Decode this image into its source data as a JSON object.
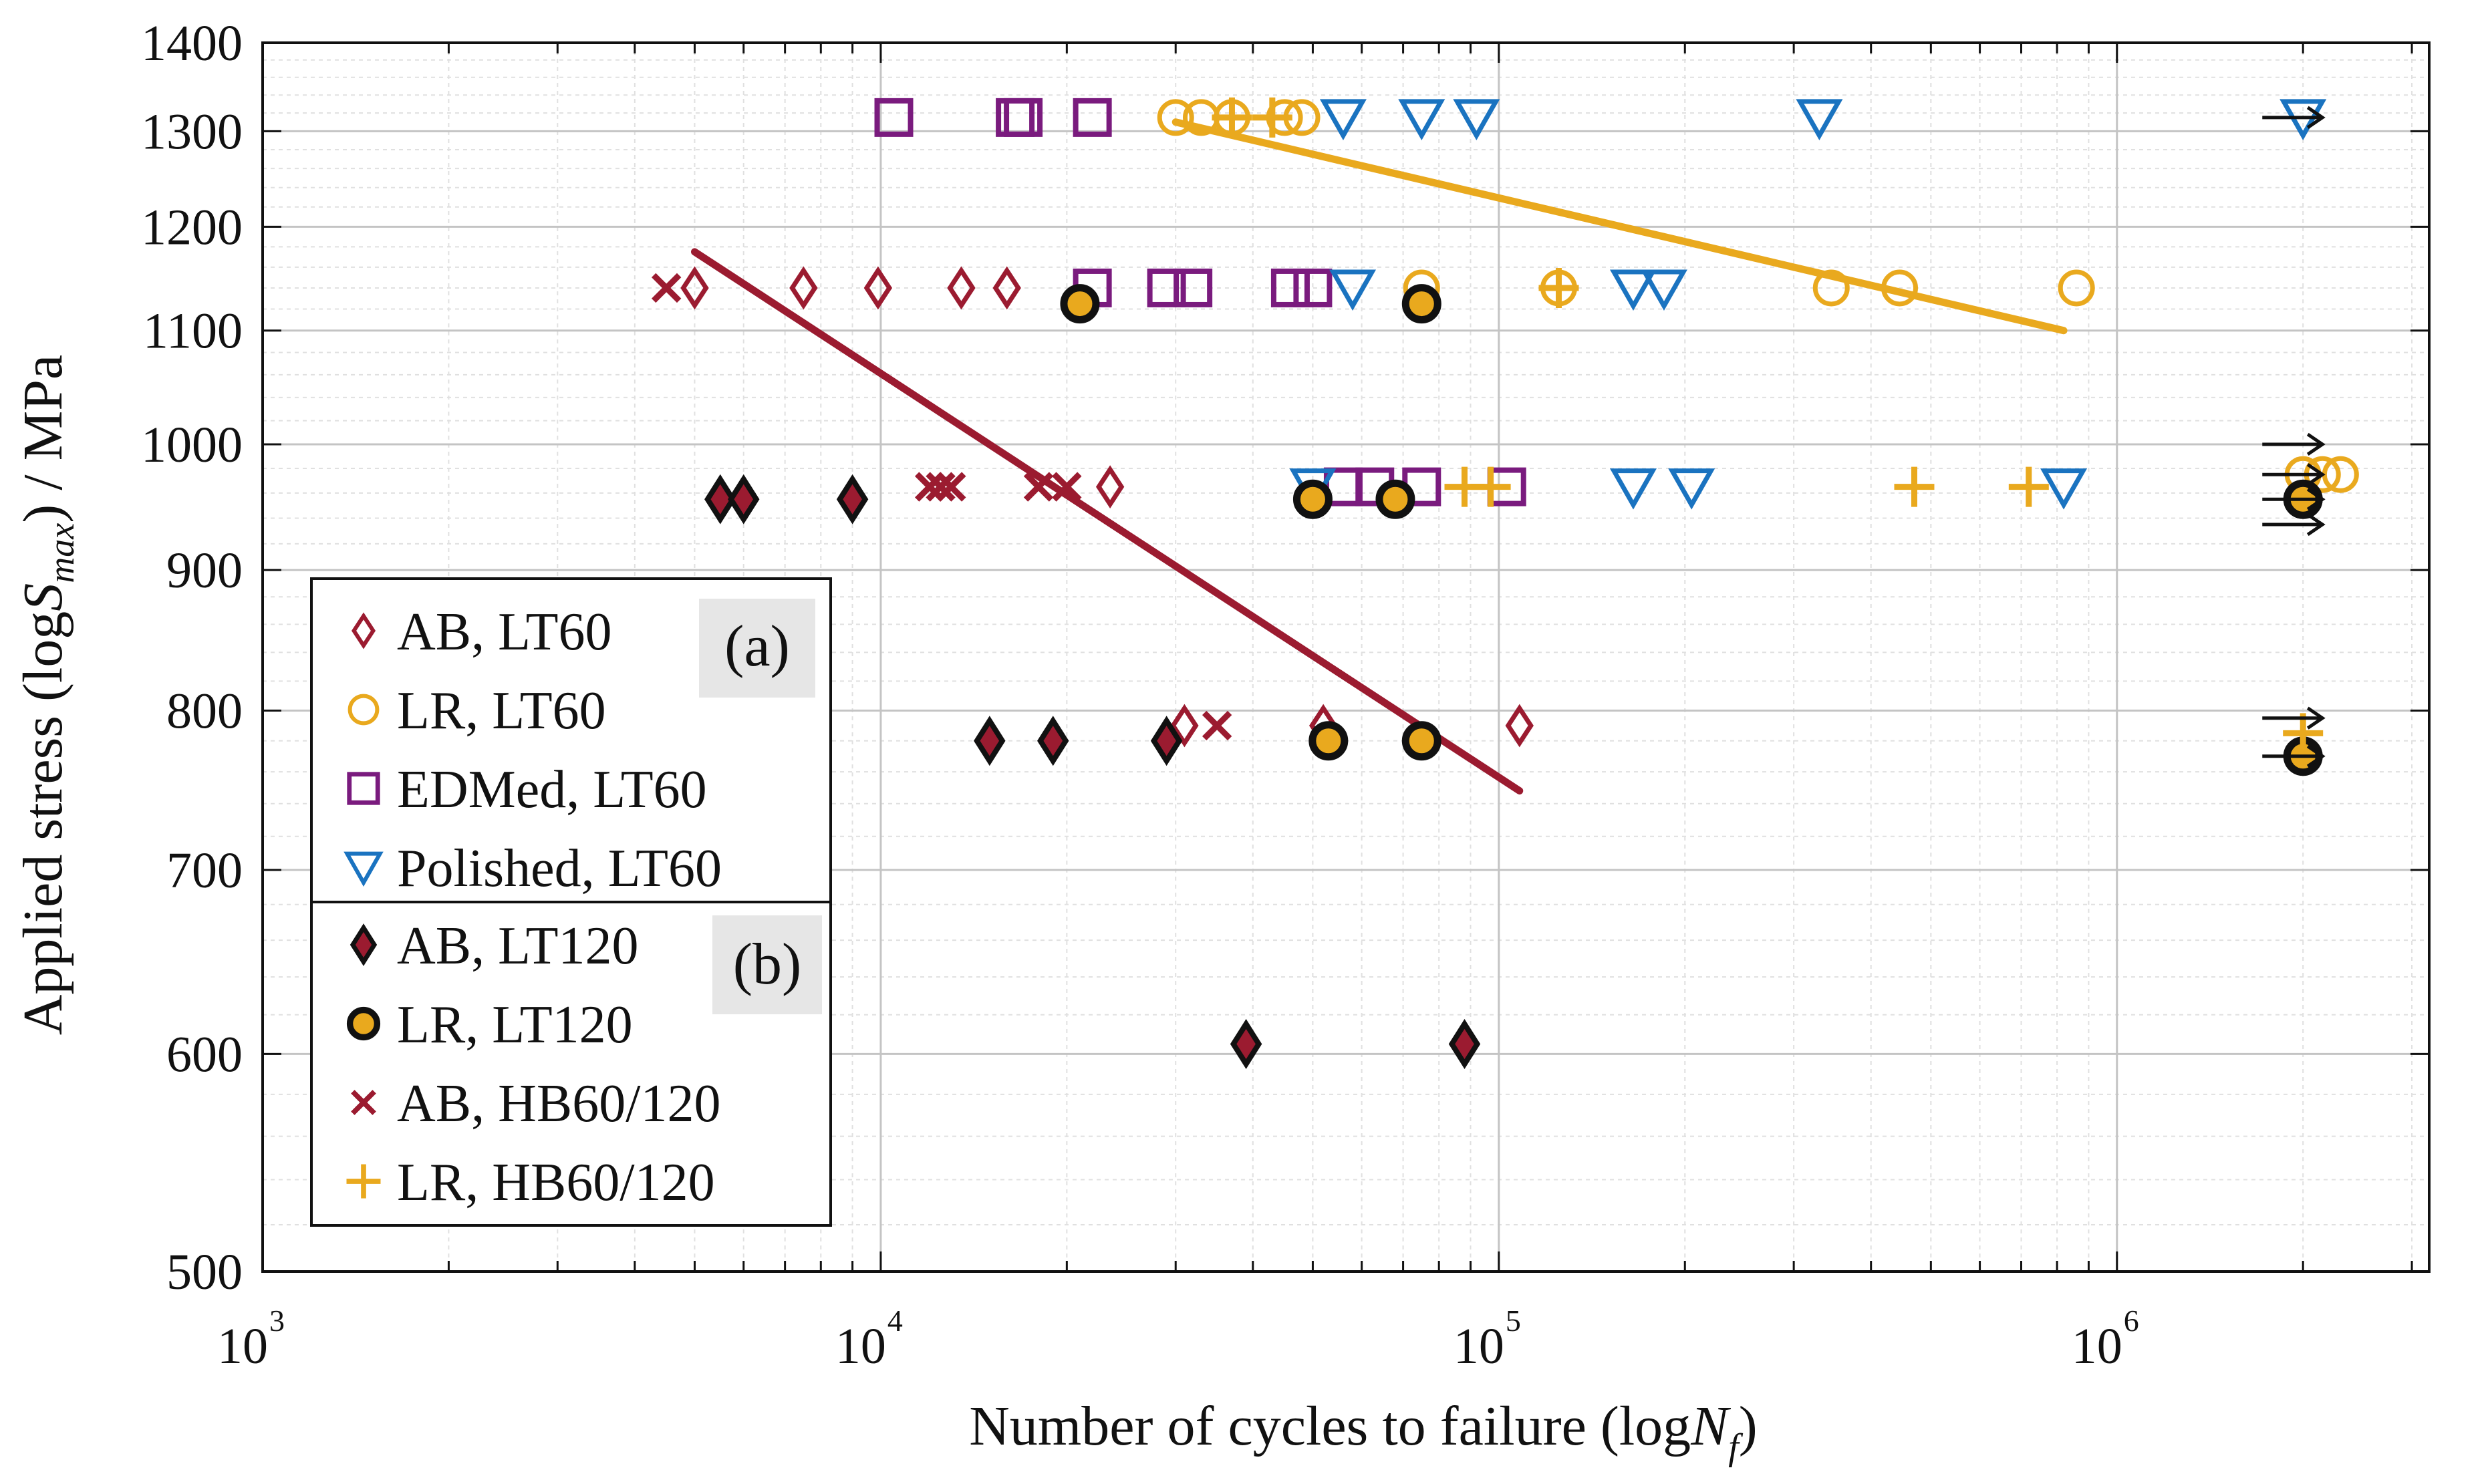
{
  "chart_data": {
    "type": "scatter",
    "title": "",
    "xlabel": "Number of cycles to failure (logNf)",
    "xlabel_parts": [
      "Number of cycles to failure (log",
      "N",
      "f",
      ")"
    ],
    "ylabel": "Applied stress (logSmax) / MPa",
    "ylabel_parts": [
      "Applied stress (log",
      "S",
      "max",
      ") / MPa"
    ],
    "xscale": "log",
    "yscale": "log",
    "xlim": [
      1000,
      3200000
    ],
    "ylim": [
      500,
      1400
    ],
    "x_ticks": [
      {
        "value": 1000,
        "base": "10",
        "exp": "3"
      },
      {
        "value": 10000,
        "base": "10",
        "exp": "4"
      },
      {
        "value": 100000,
        "base": "10",
        "exp": "5"
      },
      {
        "value": 1000000,
        "base": "10",
        "exp": "6"
      }
    ],
    "y_ticks": [
      "500",
      "600",
      "700",
      "800",
      "900",
      "1000",
      "1100",
      "1200",
      "1300",
      "1400"
    ],
    "grid": true,
    "legend_position": "bottom-left",
    "panel_labels": {
      "a": "(a)",
      "b": "(b)"
    },
    "colors": {
      "ab": "#9b1b30",
      "lr": "#e9a91e",
      "edm": "#7a1b7e",
      "pol": "#1a73c0",
      "black": "#111111"
    },
    "series": [
      {
        "name": "AB, LT60",
        "marker": "diamond-open",
        "color": "#9b1b30",
        "points": [
          [
            5000,
            1140
          ],
          [
            7500,
            1140
          ],
          [
            9900,
            1140
          ],
          [
            13500,
            1140
          ],
          [
            16000,
            1140
          ],
          [
            23500,
            965
          ],
          [
            31000,
            790
          ],
          [
            52000,
            790
          ],
          [
            108000,
            790
          ]
        ]
      },
      {
        "name": "LR, LT60",
        "marker": "circle-open",
        "color": "#e9a91e",
        "points": [
          [
            30000,
            1315
          ],
          [
            33000,
            1315
          ],
          [
            37000,
            1315
          ],
          [
            45000,
            1315
          ],
          [
            48000,
            1315
          ],
          [
            75000,
            1140
          ],
          [
            125000,
            1140
          ],
          [
            345000,
            1140
          ],
          [
            445000,
            1140
          ],
          [
            860000,
            1140
          ],
          [
            2000000,
            975
          ],
          [
            2150000,
            975
          ],
          [
            2300000,
            975
          ]
        ]
      },
      {
        "name": "EDMed, LT60",
        "marker": "square-open",
        "color": "#7a1b7e",
        "points": [
          [
            10500,
            1315
          ],
          [
            16500,
            1315
          ],
          [
            17000,
            1315
          ],
          [
            22000,
            1315
          ],
          [
            22000,
            1140
          ],
          [
            29000,
            1140
          ],
          [
            32000,
            1140
          ],
          [
            46000,
            1140
          ],
          [
            50000,
            1140
          ],
          [
            56000,
            965
          ],
          [
            63000,
            965
          ],
          [
            75000,
            965
          ],
          [
            103000,
            965
          ]
        ]
      },
      {
        "name": "Polished, LT60",
        "marker": "triangle-down-open",
        "color": "#1a73c0",
        "points": [
          [
            56000,
            1315
          ],
          [
            75000,
            1315
          ],
          [
            92000,
            1315
          ],
          [
            330000,
            1315
          ],
          [
            2000000,
            1315
          ],
          [
            58000,
            1140
          ],
          [
            165000,
            1140
          ],
          [
            185000,
            1140
          ],
          [
            50000,
            965
          ],
          [
            165000,
            965
          ],
          [
            205000,
            965
          ],
          [
            820000,
            965
          ]
        ]
      },
      {
        "name": "AB, LT120",
        "marker": "diamond-filled",
        "color": "#9b1b30",
        "points": [
          [
            5500,
            955
          ],
          [
            6000,
            955
          ],
          [
            9000,
            955
          ],
          [
            15000,
            780
          ],
          [
            19000,
            780
          ],
          [
            29000,
            780
          ],
          [
            39000,
            605
          ],
          [
            88000,
            605
          ]
        ]
      },
      {
        "name": "LR, LT120",
        "marker": "circle-filled",
        "color": "#e9a91e",
        "points": [
          [
            21000,
            1125
          ],
          [
            75000,
            1125
          ],
          [
            50000,
            955
          ],
          [
            68000,
            955
          ],
          [
            53000,
            780
          ],
          [
            75000,
            780
          ],
          [
            2000000,
            955
          ],
          [
            2000000,
            770
          ]
        ]
      },
      {
        "name": "AB, HB60/120",
        "marker": "x",
        "color": "#9b1b30",
        "points": [
          [
            4500,
            1140
          ],
          [
            12000,
            965
          ],
          [
            12500,
            965
          ],
          [
            13000,
            965
          ],
          [
            18000,
            965
          ],
          [
            20000,
            965
          ],
          [
            35000,
            790
          ]
        ]
      },
      {
        "name": "LR, HB60/120",
        "marker": "plus",
        "color": "#e9a91e",
        "points": [
          [
            37000,
            1315
          ],
          [
            43000,
            1315
          ],
          [
            88000,
            965
          ],
          [
            97000,
            965
          ],
          [
            125000,
            1140
          ],
          [
            470000,
            965
          ],
          [
            720000,
            965
          ],
          [
            2000000,
            785
          ]
        ]
      }
    ],
    "fit_lines": [
      {
        "name": "AB fit",
        "color": "#9b1b30",
        "points": [
          [
            5000,
            1175
          ],
          [
            108000,
            748
          ]
        ]
      },
      {
        "name": "LR fit",
        "color": "#e9a91e",
        "points": [
          [
            30000,
            1310
          ],
          [
            820000,
            1100
          ]
        ]
      }
    ],
    "runouts": [
      [
        2150000,
        1315
      ],
      [
        2150000,
        1000
      ],
      [
        2150000,
        975
      ],
      [
        2150000,
        955
      ],
      [
        2150000,
        935
      ],
      [
        2150000,
        795
      ],
      [
        2150000,
        770
      ]
    ]
  }
}
